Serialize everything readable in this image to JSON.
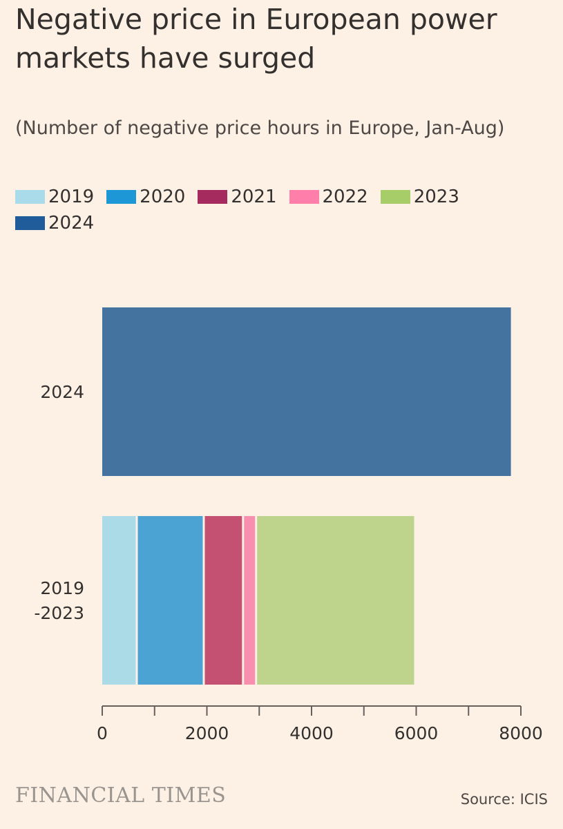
{
  "header": {
    "title": "Negative price in European power markets have surged",
    "subtitle": "(Number of negative price hours in Europe, Jan-Aug)"
  },
  "legend": [
    {
      "label": "2019",
      "color": "#a9dbea"
    },
    {
      "label": "2020",
      "color": "#1e97d7"
    },
    {
      "label": "2021",
      "color": "#a52a5e"
    },
    {
      "label": "2022",
      "color": "#ff7faa"
    },
    {
      "label": "2023",
      "color": "#a6cd67"
    },
    {
      "label": "2024",
      "color": "#1f5c99"
    }
  ],
  "chart_data": {
    "type": "bar",
    "orientation": "horizontal",
    "stacked": true,
    "title": "Negative price in European power markets have surged",
    "subtitle": "(Number of negative price hours in Europe, Jan-Aug)",
    "categories": [
      {
        "label_lines": [
          "2024"
        ]
      },
      {
        "label_lines": [
          "2019",
          "-2023"
        ]
      }
    ],
    "series": [
      {
        "name": "2019",
        "color": "#acdbe8",
        "values": [
          0,
          680
        ]
      },
      {
        "name": "2020",
        "color": "#4ba3d3",
        "values": [
          0,
          1280
        ]
      },
      {
        "name": "2021",
        "color": "#c45072",
        "values": [
          0,
          750
        ]
      },
      {
        "name": "2022",
        "color": "#f98faf",
        "values": [
          0,
          250
        ]
      },
      {
        "name": "2023",
        "color": "#bed38b",
        "values": [
          0,
          3040
        ]
      },
      {
        "name": "2024",
        "color": "#44739f",
        "values": [
          7850,
          0
        ]
      }
    ],
    "xlim": [
      0,
      8000
    ],
    "xticks": [
      "0",
      "2000",
      "4000",
      "6000",
      "8000"
    ],
    "xtick_values": [
      0,
      2000,
      4000,
      6000,
      8000
    ],
    "minor_tick_values": [
      1000,
      3000,
      5000,
      7000
    ],
    "xlabel": "",
    "ylabel": "",
    "legend_position": "top-left",
    "grid": false
  },
  "footer": {
    "brand": "FINANCIAL TIMES",
    "source": "Source: ICIS"
  }
}
